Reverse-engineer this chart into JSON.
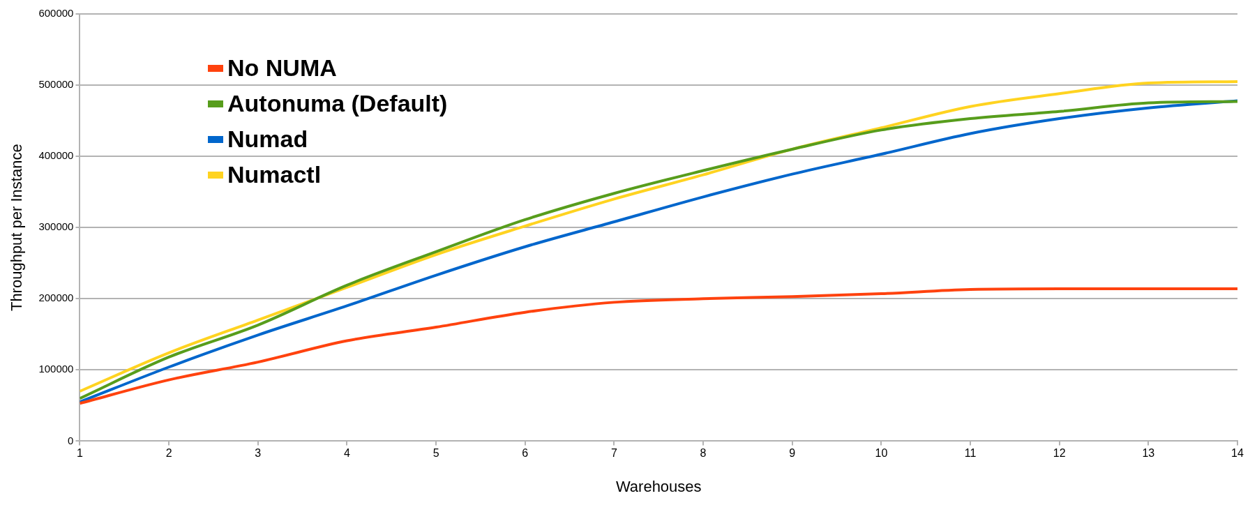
{
  "chart_data": {
    "type": "line",
    "xlabel": "Warehouses",
    "ylabel": "Throughput per Instance",
    "x": [
      1,
      2,
      3,
      4,
      5,
      6,
      7,
      8,
      9,
      10,
      11,
      12,
      13,
      14
    ],
    "xlim": [
      1,
      14
    ],
    "xticks": [
      1,
      2,
      3,
      4,
      5,
      6,
      7,
      8,
      9,
      10,
      11,
      12,
      13,
      14
    ],
    "ylim": [
      0,
      600000
    ],
    "yticks": [
      0,
      100000,
      200000,
      300000,
      400000,
      500000,
      600000
    ],
    "grid": "y",
    "legend": "top left",
    "marker": "none",
    "line_style": "solid",
    "series": [
      {
        "name": "No NUMA",
        "color": "#ff420e",
        "values": [
          53000,
          86000,
          111000,
          141000,
          160000,
          181000,
          195000,
          200000,
          203000,
          207000,
          213000,
          214000,
          214000,
          214000
        ]
      },
      {
        "name": "Autonuma (Default)",
        "color": "#579d1c",
        "values": [
          60000,
          118000,
          163000,
          219000,
          266000,
          311000,
          348000,
          380000,
          410000,
          437000,
          453000,
          463000,
          475000,
          477000
        ]
      },
      {
        "name": "Numad",
        "color": "#0066cc",
        "values": [
          55000,
          104000,
          149000,
          190000,
          233000,
          273000,
          308000,
          343000,
          375000,
          403000,
          432000,
          453000,
          468000,
          478000
        ]
      },
      {
        "name": "Numactl",
        "color": "#ffd320",
        "values": [
          70000,
          124000,
          170000,
          216000,
          262000,
          302000,
          340000,
          374000,
          410000,
          440000,
          470000,
          488000,
          503000,
          505000
        ]
      }
    ]
  }
}
